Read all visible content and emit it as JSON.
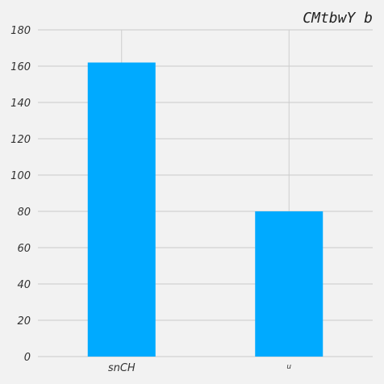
{
  "chart_data": {
    "type": "bar",
    "title": "CMtbwY b",
    "categories": [
      "snCH",
      "u"
    ],
    "values": [
      162,
      80
    ],
    "xlabel": "",
    "ylabel": "",
    "ylim": [
      0,
      180
    ],
    "yticks": [
      0,
      20,
      40,
      60,
      80,
      100,
      120,
      140,
      160,
      180
    ],
    "grid": true,
    "legend": "none",
    "colors": {
      "bar": "#00aaff",
      "background": "#f2f2f2",
      "grid": "#cbcbcb"
    }
  }
}
